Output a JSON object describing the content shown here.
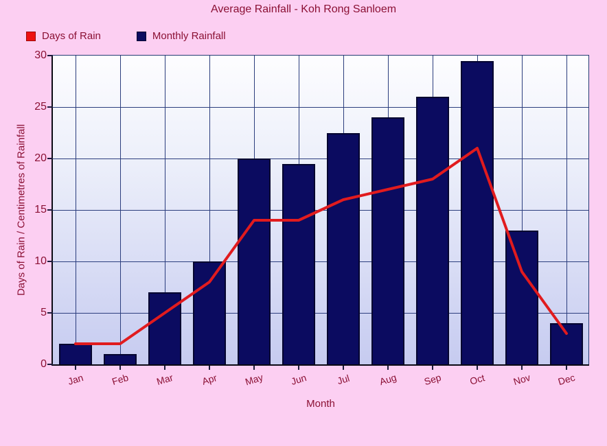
{
  "title": "Average Rainfall - Koh Rong Sanloem",
  "legend": [
    {
      "label": "Days of Rain",
      "color": "#ee1111",
      "border": "#9b0a0a"
    },
    {
      "label": "Monthly Rainfall",
      "color": "#0b0b60",
      "border": "#05052f"
    }
  ],
  "axes": {
    "x_title": "Month",
    "y_title": "Days of Rain / Centimetres of Rainfall",
    "y_ticks": [
      0,
      5,
      10,
      15,
      20,
      25,
      30
    ]
  },
  "chart_data": {
    "type": "bar+line",
    "title": "Average Rainfall - Koh Rong Sanloem",
    "xlabel": "Month",
    "ylabel": "Days of Rain / Centimetres of Rainfall",
    "categories": [
      "Jan",
      "Feb",
      "Mar",
      "Apr",
      "May",
      "Jun",
      "Jul",
      "Aug",
      "Sep",
      "Oct",
      "Nov",
      "Dec"
    ],
    "series": [
      {
        "name": "Monthly Rainfall",
        "type": "bar",
        "color": "#0b0b60",
        "values": [
          2,
          1,
          7,
          10,
          20,
          19.5,
          22.5,
          24,
          26,
          29.5,
          13,
          4
        ]
      },
      {
        "name": "Days of Rain",
        "type": "line",
        "color": "#e11b1e",
        "values": [
          2,
          2,
          5,
          8,
          14,
          14,
          16,
          17,
          18,
          21,
          9,
          3
        ]
      }
    ],
    "ylim": [
      0,
      30
    ],
    "grid": true,
    "legend_position": "top-left"
  },
  "colors": {
    "page_background": "#fccff2",
    "text": "#8b1034",
    "bar_fill": "#0b0b60",
    "line_stroke": "#e11b1e",
    "gridline": "#2b3d7d",
    "plot_gradient_top": "#fdfdff",
    "plot_gradient_bottom": "#c6cbf0"
  }
}
